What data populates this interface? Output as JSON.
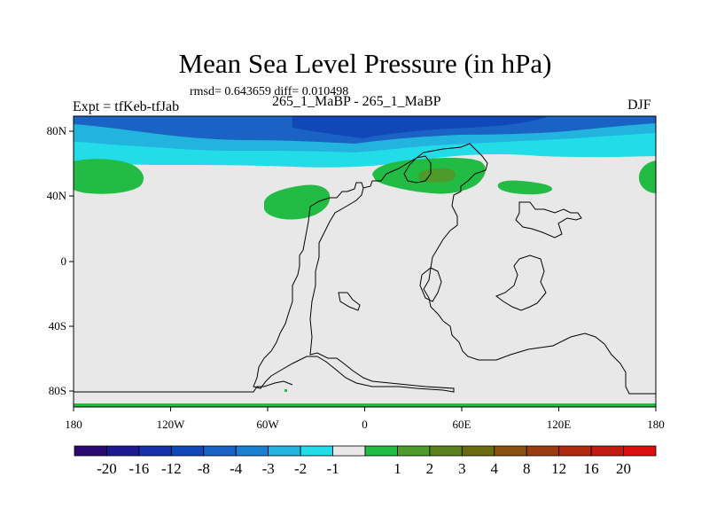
{
  "title": "Mean Sea Level Pressure (in hPa)",
  "stats": "rmsd= 0.643659 diff= 0.010498",
  "left_label": "Expt = tfKeb-tfJab",
  "center_label": "265_1_MaBP - 265_1_MaBP",
  "right_label": "DJF",
  "map": {
    "x_ticks": [
      "180",
      "120W",
      "60W",
      "0",
      "60E",
      "120E",
      "180"
    ],
    "y_ticks": [
      "80N",
      "40N",
      "0",
      "40S",
      "80S"
    ]
  },
  "colorbar": {
    "colors": [
      "#2a0a6e",
      "#1d1a8f",
      "#1530a8",
      "#1048b8",
      "#1a62c4",
      "#1c80d0",
      "#22b4de",
      "#22dde8",
      "#e8e8e8",
      "#22bb44",
      "#4e9a2a",
      "#5a8020",
      "#6a6a10",
      "#8a5010",
      "#9a3c10",
      "#b02a10",
      "#c21a10",
      "#d81010"
    ],
    "labels": [
      "-20",
      "-16",
      "-12",
      "-8",
      "-4",
      "-3",
      "-2",
      "-1",
      "1",
      "2",
      "3",
      "4",
      "8",
      "12",
      "16",
      "20"
    ]
  }
}
